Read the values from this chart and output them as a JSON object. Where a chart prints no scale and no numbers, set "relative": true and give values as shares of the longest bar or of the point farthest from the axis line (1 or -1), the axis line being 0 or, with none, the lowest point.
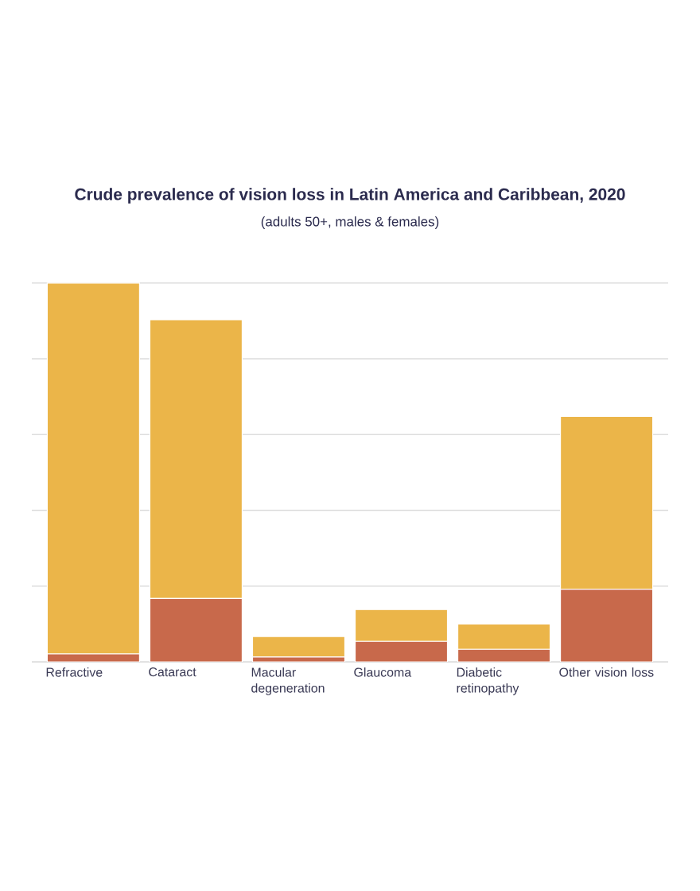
{
  "chart_data": {
    "type": "bar",
    "stacked": true,
    "relative": true,
    "grid": "y",
    "title": "Crude prevalence of vision loss in Latin America and Caribbean, 2020",
    "subtitle": "(adults 50+, males & females)",
    "categories": [
      "Refractive",
      "Cataract",
      "Macular degeneration",
      "Glaucoma",
      "Diabetic retinopathy",
      "Other vision loss"
    ],
    "series": [
      {
        "color": "#c8694b",
        "values": [
          0.021,
          0.167,
          0.013,
          0.054,
          0.033,
          0.192
        ]
      },
      {
        "color": "#ebb549",
        "values": [
          0.979,
          0.736,
          0.054,
          0.084,
          0.067,
          0.456
        ]
      }
    ]
  }
}
